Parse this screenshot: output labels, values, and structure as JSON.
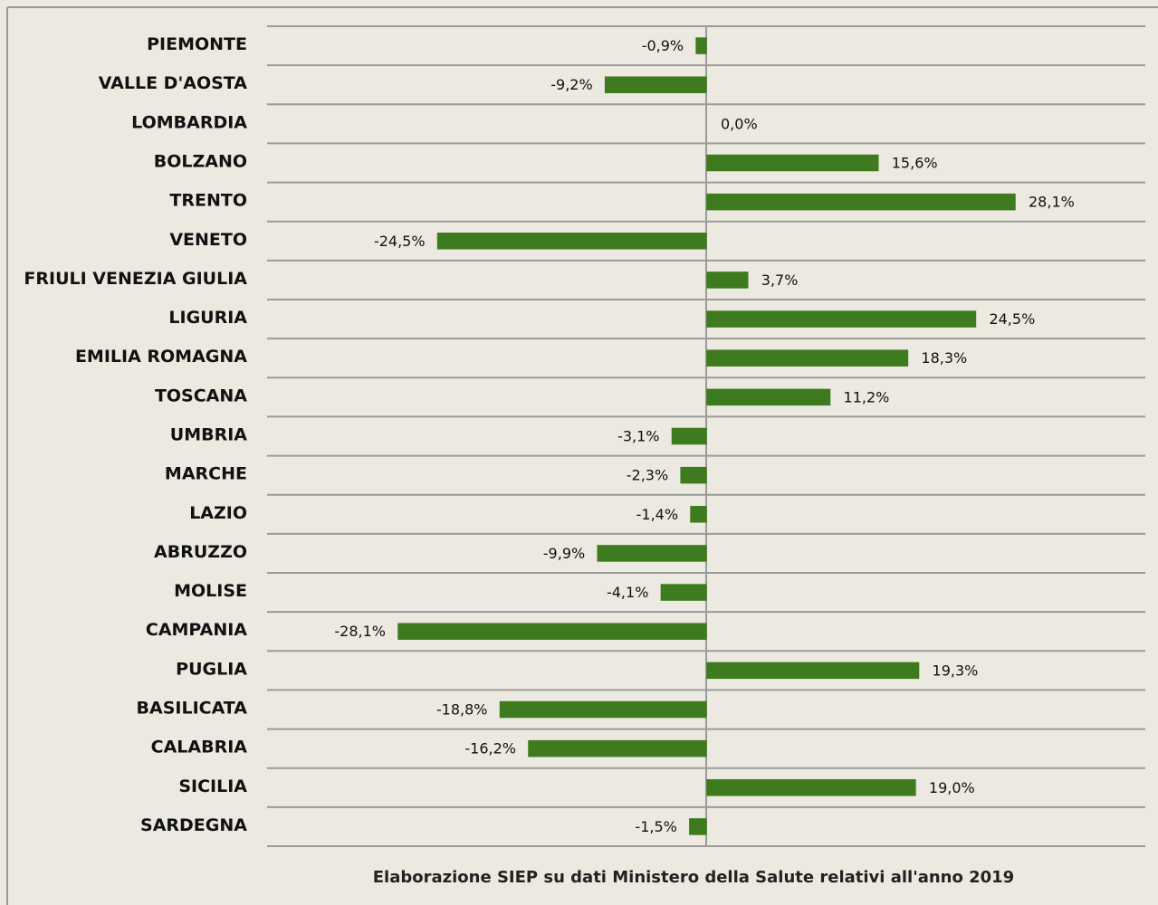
{
  "chart_data": {
    "type": "bar",
    "orientation": "horizontal",
    "color": "#3e7a1e",
    "categories": [
      "PIEMONTE",
      "VALLE D'AOSTA",
      "LOMBARDIA",
      "BOLZANO",
      "TRENTO",
      "VENETO",
      "FRIULI VENEZIA GIULIA",
      "LIGURIA",
      "EMILIA ROMAGNA",
      "TOSCANA",
      "UMBRIA",
      "MARCHE",
      "LAZIO",
      "ABRUZZO",
      "MOLISE",
      "CAMPANIA",
      "PUGLIA",
      "BASILICATA",
      "CALABRIA",
      "SICILIA",
      "SARDEGNA"
    ],
    "values": [
      -0.9,
      -9.2,
      0.0,
      15.6,
      28.1,
      -24.5,
      3.7,
      24.5,
      18.3,
      11.2,
      -3.1,
      -2.3,
      -1.4,
      -9.9,
      -4.1,
      -28.1,
      19.3,
      -18.8,
      -16.2,
      19.0,
      -1.5
    ],
    "value_labels": [
      "-0,9%",
      "-9,2%",
      "0,0%",
      "15,6%",
      "28,1%",
      "-24,5%",
      "3,7%",
      "24,5%",
      "18,3%",
      "11,2%",
      "-3,1%",
      "-2,3%",
      "-1,4%",
      "-9,9%",
      "-4,1%",
      "-28,1%",
      "19,3%",
      "-18,8%",
      "-16,2%",
      "19,0%",
      "-1,5%"
    ],
    "source": "Elaborazione SIEP su dati Ministero della Salute relativi all'anno 2019"
  }
}
